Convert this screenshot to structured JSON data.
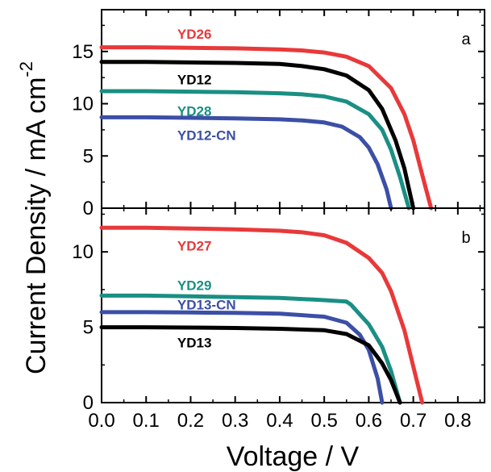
{
  "chart_data": [
    {
      "type": "line",
      "panel_label": "a",
      "xlabel": "Voltage / V",
      "ylabel": "Current Density / mA cm-2",
      "ylabel_main": "Current Density / mA cm",
      "ylabel_superscript": "-2",
      "xlim": [
        0.0,
        0.86
      ],
      "ylim": [
        0,
        19
      ],
      "x_ticks": [
        "0.0",
        "0.1",
        "0.2",
        "0.3",
        "0.4",
        "0.5",
        "0.6",
        "0.7",
        "0.8"
      ],
      "y_ticks": [
        "0",
        "5",
        "10",
        "15"
      ],
      "grid": false,
      "series": [
        {
          "name": "YD26",
          "color": "#e8393a",
          "label_at": [
            0.17,
            16.7
          ],
          "x": [
            0.0,
            0.1,
            0.2,
            0.3,
            0.4,
            0.45,
            0.5,
            0.55,
            0.6,
            0.65,
            0.68,
            0.7,
            0.72,
            0.74
          ],
          "y": [
            15.4,
            15.4,
            15.35,
            15.3,
            15.2,
            15.1,
            14.9,
            14.5,
            13.6,
            11.5,
            9.0,
            6.5,
            3.2,
            0.0
          ]
        },
        {
          "name": "YD12",
          "color": "#000000",
          "label_at": [
            0.17,
            12.3
          ],
          "x": [
            0.0,
            0.1,
            0.2,
            0.3,
            0.4,
            0.45,
            0.5,
            0.55,
            0.6,
            0.63,
            0.66,
            0.68,
            0.7
          ],
          "y": [
            14.0,
            14.0,
            13.95,
            13.9,
            13.8,
            13.6,
            13.3,
            12.7,
            11.3,
            9.5,
            6.5,
            3.8,
            0.0
          ]
        },
        {
          "name": "YD28",
          "color": "#1a8f84",
          "label_at": [
            0.17,
            9.3
          ],
          "x": [
            0.0,
            0.1,
            0.2,
            0.3,
            0.4,
            0.45,
            0.5,
            0.55,
            0.6,
            0.63,
            0.65,
            0.67,
            0.69
          ],
          "y": [
            11.2,
            11.2,
            11.15,
            11.1,
            11.0,
            10.9,
            10.7,
            10.2,
            9.0,
            7.5,
            5.6,
            3.0,
            0.0
          ]
        },
        {
          "name": "YD12-CN",
          "color": "#3c4fa6",
          "label_at": [
            0.17,
            7.0
          ],
          "x": [
            0.0,
            0.1,
            0.2,
            0.3,
            0.4,
            0.45,
            0.5,
            0.54,
            0.58,
            0.6,
            0.62,
            0.64,
            0.65
          ],
          "y": [
            8.7,
            8.7,
            8.65,
            8.6,
            8.5,
            8.4,
            8.2,
            7.8,
            6.8,
            5.8,
            4.2,
            1.8,
            0.0
          ]
        }
      ]
    },
    {
      "type": "line",
      "panel_label": "b",
      "xlabel": "Voltage / V",
      "ylabel": "Current Density / mA cm-2",
      "xlim": [
        0.0,
        0.86
      ],
      "ylim": [
        0,
        12.9
      ],
      "x_ticks": [
        "0.0",
        "0.1",
        "0.2",
        "0.3",
        "0.4",
        "0.5",
        "0.6",
        "0.7",
        "0.8"
      ],
      "y_ticks": [
        "0",
        "5",
        "10"
      ],
      "grid": false,
      "series": [
        {
          "name": "YD27",
          "color": "#e8393a",
          "label_at": [
            0.17,
            10.4
          ],
          "x": [
            0.0,
            0.1,
            0.2,
            0.3,
            0.4,
            0.45,
            0.5,
            0.55,
            0.6,
            0.63,
            0.65,
            0.68,
            0.7,
            0.72
          ],
          "y": [
            11.6,
            11.6,
            11.55,
            11.5,
            11.4,
            11.3,
            11.1,
            10.6,
            9.6,
            8.6,
            7.4,
            4.8,
            2.4,
            0.0
          ]
        },
        {
          "name": "YD29",
          "color": "#1a8f84",
          "label_at": [
            0.17,
            7.8
          ],
          "x": [
            0.0,
            0.1,
            0.2,
            0.3,
            0.4,
            0.5,
            0.55,
            0.56,
            0.6,
            0.63,
            0.65,
            0.67
          ],
          "y": [
            7.1,
            7.1,
            7.05,
            7.0,
            6.95,
            6.8,
            6.7,
            6.5,
            5.2,
            3.7,
            2.1,
            0.0
          ]
        },
        {
          "name": "YD13-CN",
          "color": "#3c4fa6",
          "label_at": [
            0.17,
            6.5
          ],
          "x": [
            0.0,
            0.1,
            0.2,
            0.3,
            0.4,
            0.5,
            0.55,
            0.58,
            0.6,
            0.62,
            0.63
          ],
          "y": [
            6.0,
            6.0,
            5.98,
            5.95,
            5.9,
            5.7,
            5.3,
            4.5,
            3.5,
            1.6,
            0.0
          ]
        },
        {
          "name": "YD13",
          "color": "#000000",
          "label_at": [
            0.17,
            4.0
          ],
          "x": [
            0.0,
            0.1,
            0.2,
            0.3,
            0.4,
            0.5,
            0.55,
            0.6,
            0.63,
            0.65,
            0.67
          ],
          "y": [
            5.0,
            5.0,
            4.98,
            4.95,
            4.9,
            4.8,
            4.55,
            3.8,
            2.6,
            1.5,
            0.0
          ]
        }
      ]
    }
  ]
}
